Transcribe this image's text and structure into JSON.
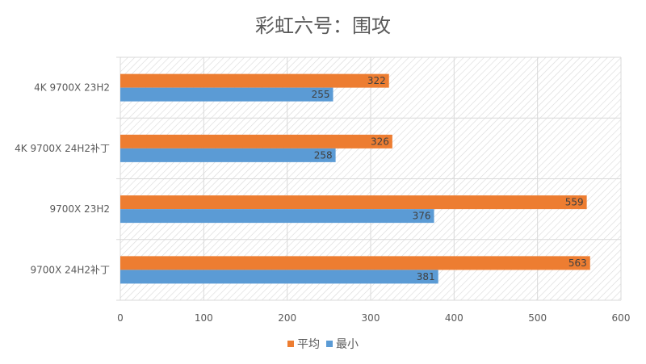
{
  "chart_data": {
    "type": "bar",
    "orientation": "horizontal",
    "title": "彩虹六号：围攻",
    "categories": [
      "4K 9700X 23H2",
      "4K 9700X 24H2补丁",
      "9700X 23H2",
      "9700X 24H2补丁"
    ],
    "series": [
      {
        "name": "平均",
        "color": "#ED7D31",
        "values": [
          322,
          326,
          559,
          563
        ]
      },
      {
        "name": "最小",
        "color": "#5B9BD5",
        "values": [
          255,
          258,
          376,
          381
        ]
      }
    ],
    "xlim": [
      0,
      600
    ],
    "xticks": [
      0,
      100,
      200,
      300,
      400,
      500,
      600
    ],
    "grid": true,
    "background": "diagonal-hatch",
    "legend": "bottom",
    "data_labels": true
  }
}
